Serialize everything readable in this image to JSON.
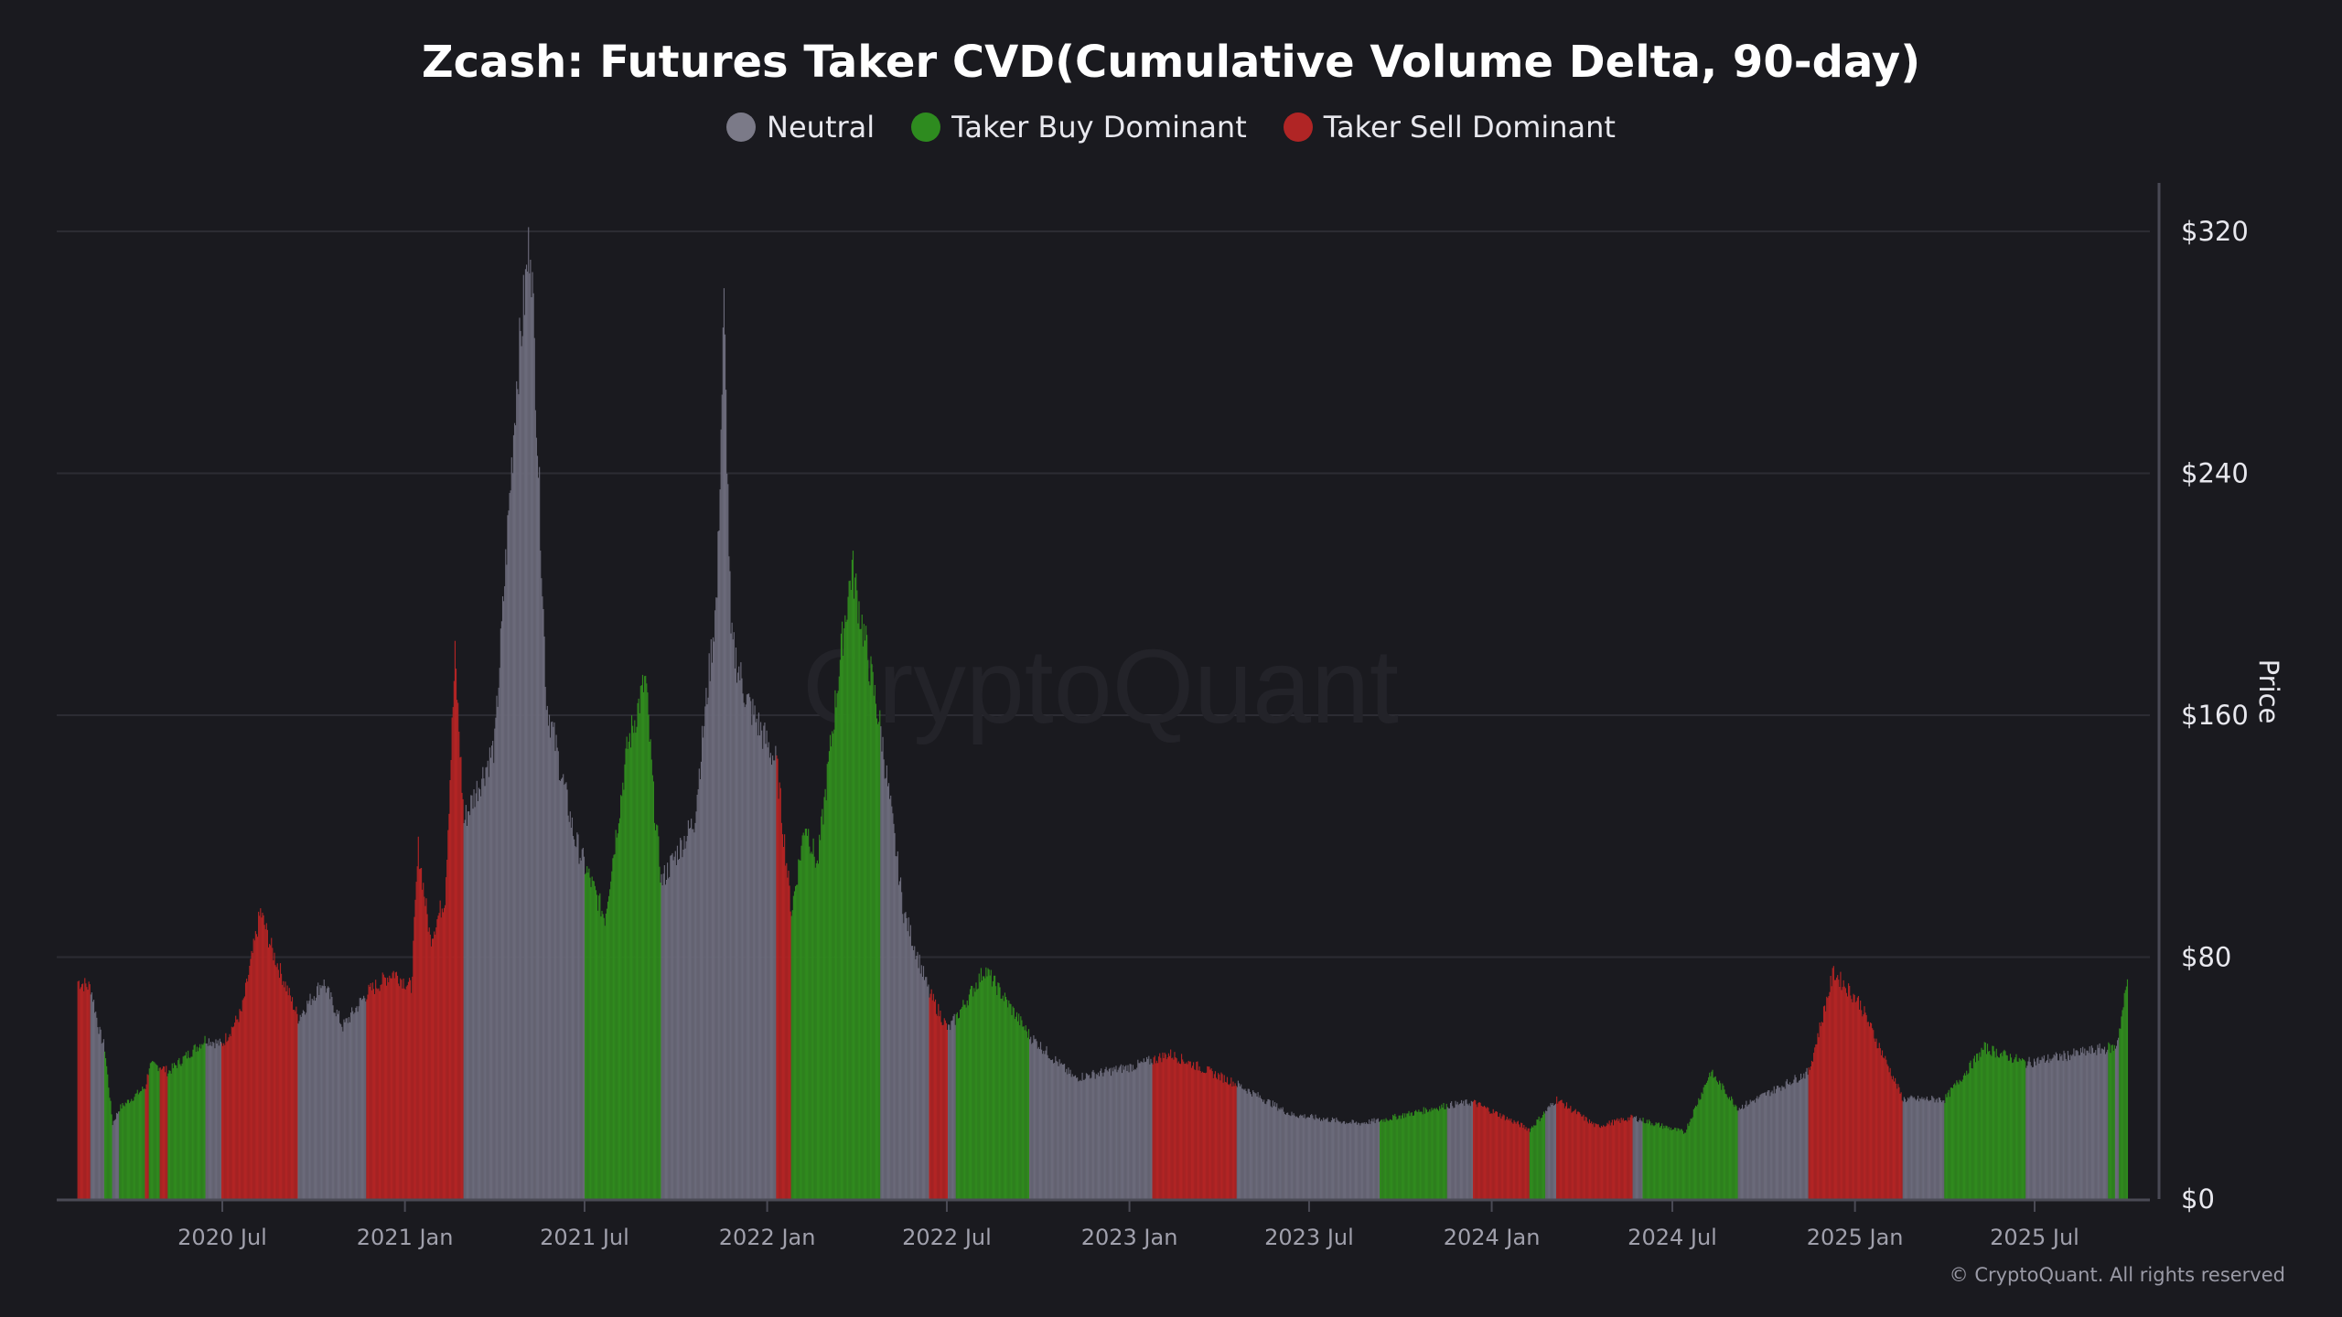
{
  "chart_data": {
    "type": "bar",
    "title": "Zcash: Futures Taker CVD(Cumulative Volume Delta, 90-day)",
    "ylabel": "Price",
    "ylim": [
      0,
      320
    ],
    "y_ticks": [
      "$0",
      "$80",
      "$160",
      "$240",
      "$320"
    ],
    "y_tick_values": [
      0,
      80,
      160,
      240,
      320
    ],
    "x_ticks": [
      {
        "date": "2020-07-01",
        "label": "2020 Jul"
      },
      {
        "date": "2021-01-01",
        "label": "2021 Jan"
      },
      {
        "date": "2021-07-01",
        "label": "2021 Jul"
      },
      {
        "date": "2022-01-01",
        "label": "2022 Jan"
      },
      {
        "date": "2022-07-01",
        "label": "2022 Jul"
      },
      {
        "date": "2023-01-01",
        "label": "2023 Jan"
      },
      {
        "date": "2023-07-01",
        "label": "2023 Jul"
      },
      {
        "date": "2024-01-01",
        "label": "2024 Jan"
      },
      {
        "date": "2024-07-01",
        "label": "2024 Jul"
      },
      {
        "date": "2025-01-01",
        "label": "2025 Jan"
      },
      {
        "date": "2025-07-01",
        "label": "2025 Jul"
      }
    ],
    "grid": true,
    "y_axis_position": "right",
    "legend_position": "top",
    "legend": [
      {
        "key": "neutral",
        "label": "Neutral",
        "color": "#7b7a88"
      },
      {
        "key": "buy",
        "label": "Taker Buy Dominant",
        "color": "#2e8b1f"
      },
      {
        "key": "sell",
        "label": "Taker Sell Dominant",
        "color": "#b02525"
      }
    ],
    "bar_colors": {
      "neutral": "#6b6a7a",
      "buy": "#308a1e",
      "sell": "#b22424"
    },
    "points_columns": [
      "date",
      "price_usd",
      "state"
    ],
    "points": [
      [
        "2020-02-06",
        72,
        "sell"
      ],
      [
        "2020-02-19",
        70,
        "neutral"
      ],
      [
        "2020-02-28",
        55,
        "neutral"
      ],
      [
        "2020-03-04",
        50,
        "buy"
      ],
      [
        "2020-03-12",
        25,
        "neutral"
      ],
      [
        "2020-03-19",
        30,
        "buy"
      ],
      [
        "2020-04-14",
        37,
        "sell"
      ],
      [
        "2020-04-18",
        44,
        "buy"
      ],
      [
        "2020-04-29",
        44,
        "sell"
      ],
      [
        "2020-05-07",
        42,
        "buy"
      ],
      [
        "2020-06-14",
        53,
        "neutral"
      ],
      [
        "2020-06-30",
        51,
        "sell"
      ],
      [
        "2020-07-20",
        62,
        "sell"
      ],
      [
        "2020-08-08",
        95,
        "sell"
      ],
      [
        "2020-08-20",
        82,
        "sell"
      ],
      [
        "2020-09-15",
        60,
        "neutral"
      ],
      [
        "2020-10-10",
        72,
        "neutral"
      ],
      [
        "2020-10-30",
        57,
        "neutral"
      ],
      [
        "2020-11-23",
        68,
        "sell"
      ],
      [
        "2020-12-20",
        75,
        "sell"
      ],
      [
        "2021-01-07",
        70,
        "sell"
      ],
      [
        "2021-01-14",
        116,
        "sell"
      ],
      [
        "2021-01-26",
        86,
        "sell"
      ],
      [
        "2021-02-10",
        100,
        "sell"
      ],
      [
        "2021-02-20",
        179,
        "sell"
      ],
      [
        "2021-03-01",
        125,
        "neutral"
      ],
      [
        "2021-04-01",
        150,
        "neutral"
      ],
      [
        "2021-04-23",
        270,
        "neutral"
      ],
      [
        "2021-05-07",
        320,
        "neutral"
      ],
      [
        "2021-05-23",
        165,
        "neutral"
      ],
      [
        "2021-06-20",
        120,
        "neutral"
      ],
      [
        "2021-07-01",
        110,
        "buy"
      ],
      [
        "2021-07-21",
        93,
        "buy"
      ],
      [
        "2021-08-13",
        150,
        "buy"
      ],
      [
        "2021-08-31",
        172,
        "buy"
      ],
      [
        "2021-09-08",
        133,
        "buy"
      ],
      [
        "2021-09-16",
        105,
        "neutral"
      ],
      [
        "2021-10-19",
        125,
        "neutral"
      ],
      [
        "2021-11-11",
        200,
        "neutral"
      ],
      [
        "2021-11-18",
        295,
        "neutral"
      ],
      [
        "2021-11-25",
        185,
        "neutral"
      ],
      [
        "2021-12-11",
        165,
        "neutral"
      ],
      [
        "2022-01-10",
        144,
        "sell"
      ],
      [
        "2022-01-25",
        95,
        "buy"
      ],
      [
        "2022-02-08",
        125,
        "buy"
      ],
      [
        "2022-02-20",
        110,
        "buy"
      ],
      [
        "2022-03-19",
        190,
        "buy"
      ],
      [
        "2022-03-27",
        209,
        "buy"
      ],
      [
        "2022-04-25",
        155,
        "neutral"
      ],
      [
        "2022-05-18",
        95,
        "neutral"
      ],
      [
        "2022-06-13",
        68,
        "sell"
      ],
      [
        "2022-07-02",
        56,
        "neutral"
      ],
      [
        "2022-07-10",
        60,
        "buy"
      ],
      [
        "2022-08-08",
        76,
        "buy"
      ],
      [
        "2022-09-22",
        54,
        "neutral"
      ],
      [
        "2022-11-06",
        40,
        "neutral"
      ],
      [
        "2023-01-06",
        44,
        "neutral"
      ],
      [
        "2023-01-24",
        46,
        "sell"
      ],
      [
        "2023-02-10",
        48,
        "sell"
      ],
      [
        "2023-04-19",
        38,
        "neutral"
      ],
      [
        "2023-06-12",
        28,
        "neutral"
      ],
      [
        "2023-08-18",
        25,
        "neutral"
      ],
      [
        "2023-09-10",
        26,
        "buy"
      ],
      [
        "2023-11-17",
        31,
        "neutral"
      ],
      [
        "2023-12-13",
        32,
        "sell"
      ],
      [
        "2024-02-08",
        23,
        "buy"
      ],
      [
        "2024-02-24",
        29,
        "neutral"
      ],
      [
        "2024-03-06",
        33,
        "sell"
      ],
      [
        "2024-04-15",
        24,
        "sell"
      ],
      [
        "2024-05-22",
        27,
        "neutral"
      ],
      [
        "2024-06-01",
        26,
        "buy"
      ],
      [
        "2024-07-13",
        22,
        "buy"
      ],
      [
        "2024-08-08",
        42,
        "buy"
      ],
      [
        "2024-09-05",
        30,
        "neutral"
      ],
      [
        "2024-11-15",
        42,
        "sell"
      ],
      [
        "2024-12-10",
        75,
        "sell"
      ],
      [
        "2025-01-05",
        65,
        "sell"
      ],
      [
        "2025-02-18",
        33,
        "neutral"
      ],
      [
        "2025-04-01",
        33,
        "buy"
      ],
      [
        "2025-05-11",
        50,
        "buy"
      ],
      [
        "2025-06-22",
        45,
        "neutral"
      ],
      [
        "2025-09-13",
        50,
        "buy"
      ],
      [
        "2025-09-20",
        50,
        "neutral"
      ],
      [
        "2025-09-24",
        56,
        "buy"
      ],
      [
        "2025-10-03",
        74,
        "buy"
      ]
    ]
  },
  "watermark": "CryptoQuant",
  "copyright": "© CryptoQuant. All rights reserved"
}
